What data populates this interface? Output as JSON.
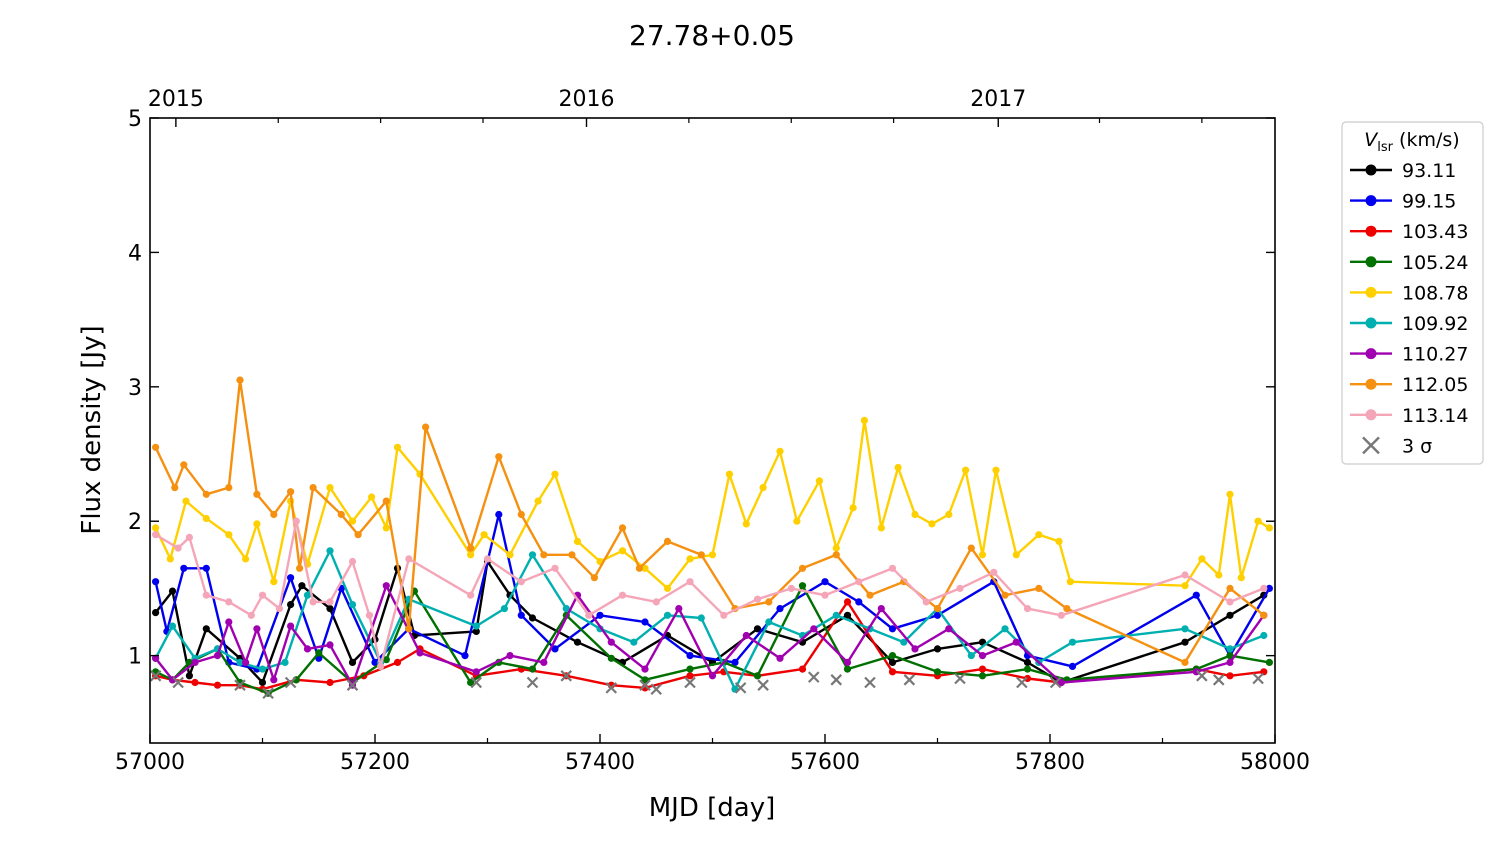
{
  "chart_data": {
    "type": "line",
    "title": "27.78+0.05",
    "xlabel": "MJD [day]",
    "ylabel": "Flux density [Jy]",
    "xlim": [
      57000,
      58000
    ],
    "ylim": [
      0.35,
      5
    ],
    "x_ticks": [
      57000,
      57200,
      57400,
      57600,
      57800,
      58000
    ],
    "y_ticks": [
      1,
      2,
      3,
      4,
      5
    ],
    "top_axis": {
      "ticks": [
        {
          "label": "2015",
          "mjd": 57023
        },
        {
          "label": "2016",
          "mjd": 57388
        },
        {
          "label": "2017",
          "mjd": 57754
        }
      ]
    },
    "grid": false,
    "legend": {
      "placement": "outside-right",
      "title_main": "V",
      "title_sub": "lsr",
      "title_unit": " (km/s)",
      "upper_limit_label": "3 σ",
      "upper_limit_color": "#777777"
    },
    "series": [
      {
        "name": "93.11",
        "color": "#000000",
        "x": [
          57005,
          57020,
          57035,
          57050,
          57080,
          57100,
          57125,
          57135,
          57160,
          57180,
          57200,
          57220,
          57235,
          57290,
          57300,
          57320,
          57340,
          57380,
          57420,
          57460,
          57500,
          57540,
          57580,
          57620,
          57660,
          57700,
          57740,
          57780,
          57810,
          57920,
          57960,
          57990
        ],
        "y": [
          1.32,
          1.48,
          0.85,
          1.2,
          0.98,
          0.8,
          1.38,
          1.52,
          1.35,
          0.95,
          1.12,
          1.65,
          1.15,
          1.18,
          1.7,
          1.45,
          1.28,
          1.1,
          0.95,
          1.15,
          0.95,
          1.2,
          1.1,
          1.3,
          0.95,
          1.05,
          1.1,
          0.95,
          0.8,
          1.1,
          1.3,
          1.45
        ]
      },
      {
        "name": "99.15",
        "color": "#0000ee",
        "x": [
          57005,
          57015,
          57030,
          57050,
          57070,
          57095,
          57125,
          57150,
          57170,
          57200,
          57230,
          57280,
          57310,
          57330,
          57360,
          57400,
          57440,
          57480,
          57520,
          57560,
          57600,
          57630,
          57660,
          57700,
          57750,
          57780,
          57820,
          57930,
          57960,
          57995
        ],
        "y": [
          1.55,
          1.18,
          1.65,
          1.65,
          0.95,
          0.9,
          1.58,
          0.98,
          1.5,
          0.95,
          1.2,
          1.0,
          2.05,
          1.3,
          1.05,
          1.3,
          1.25,
          1.0,
          0.95,
          1.35,
          1.55,
          1.4,
          1.2,
          1.3,
          1.55,
          1.0,
          0.92,
          1.45,
          1.0,
          1.5
        ]
      },
      {
        "name": "103.43",
        "color": "#ee0000",
        "x": [
          57005,
          57020,
          57040,
          57060,
          57080,
          57100,
          57130,
          57160,
          57190,
          57220,
          57240,
          57290,
          57330,
          57370,
          57410,
          57440,
          57480,
          57510,
          57540,
          57580,
          57620,
          57660,
          57700,
          57740,
          57780,
          57810,
          57930,
          57960,
          57990
        ],
        "y": [
          0.85,
          0.82,
          0.8,
          0.78,
          0.78,
          0.75,
          0.82,
          0.8,
          0.85,
          0.95,
          1.05,
          0.85,
          0.9,
          0.85,
          0.78,
          0.76,
          0.85,
          0.88,
          0.85,
          0.9,
          1.4,
          0.88,
          0.85,
          0.9,
          0.83,
          0.8,
          0.9,
          0.85,
          0.88
        ]
      },
      {
        "name": "105.24",
        "color": "#007000",
        "x": [
          57005,
          57020,
          57035,
          57060,
          57080,
          57105,
          57130,
          57150,
          57180,
          57210,
          57235,
          57285,
          57310,
          57340,
          57370,
          57410,
          57440,
          57480,
          57510,
          57540,
          57580,
          57620,
          57660,
          57700,
          57740,
          57780,
          57815,
          57930,
          57960,
          57995
        ],
        "y": [
          0.88,
          0.82,
          0.95,
          1.05,
          0.8,
          0.72,
          0.82,
          1.02,
          0.8,
          0.97,
          1.48,
          0.8,
          0.95,
          0.9,
          1.3,
          0.98,
          0.82,
          0.9,
          0.95,
          0.85,
          1.52,
          0.9,
          1.0,
          0.88,
          0.85,
          0.9,
          0.82,
          0.9,
          1.0,
          0.95
        ]
      },
      {
        "name": "108.78",
        "color": "#ffd000",
        "x": [
          57005,
          57018,
          57032,
          57050,
          57070,
          57085,
          57095,
          57110,
          57125,
          57140,
          57160,
          57180,
          57197,
          57210,
          57220,
          57240,
          57285,
          57297,
          57320,
          57345,
          57360,
          57380,
          57400,
          57420,
          57440,
          57460,
          57480,
          57500,
          57515,
          57530,
          57545,
          57560,
          57575,
          57595,
          57610,
          57625,
          57635,
          57650,
          57665,
          57680,
          57695,
          57710,
          57725,
          57740,
          57752,
          57770,
          57790,
          57808,
          57818,
          57920,
          57935,
          57950,
          57960,
          57970,
          57985,
          57995
        ],
        "y": [
          1.95,
          1.72,
          2.15,
          2.02,
          1.9,
          1.72,
          1.98,
          1.55,
          2.15,
          1.68,
          2.25,
          2.0,
          2.18,
          1.95,
          2.55,
          2.35,
          1.75,
          1.9,
          1.75,
          2.15,
          2.35,
          1.85,
          1.7,
          1.78,
          1.65,
          1.5,
          1.72,
          1.75,
          2.35,
          1.98,
          2.25,
          2.52,
          2.0,
          2.3,
          1.8,
          2.1,
          2.75,
          1.95,
          2.4,
          2.05,
          1.98,
          2.05,
          2.38,
          1.75,
          2.38,
          1.75,
          1.9,
          1.85,
          1.55,
          1.52,
          1.72,
          1.6,
          2.2,
          1.58,
          2.0,
          1.95
        ]
      },
      {
        "name": "109.92",
        "color": "#00b0b0",
        "x": [
          57005,
          57020,
          57040,
          57060,
          57080,
          57100,
          57120,
          57140,
          57160,
          57180,
          57205,
          57230,
          57290,
          57315,
          57340,
          57370,
          57400,
          57430,
          57460,
          57490,
          57520,
          57550,
          57580,
          57610,
          57640,
          57670,
          57700,
          57730,
          57760,
          57790,
          57820,
          57920,
          57960,
          57990
        ],
        "y": [
          0.98,
          1.22,
          0.98,
          1.05,
          0.95,
          0.9,
          0.95,
          1.45,
          1.78,
          1.38,
          0.95,
          1.42,
          1.22,
          1.35,
          1.75,
          1.35,
          1.2,
          1.1,
          1.3,
          1.28,
          0.75,
          1.25,
          1.15,
          1.3,
          1.2,
          1.1,
          1.35,
          1.0,
          1.2,
          0.95,
          1.1,
          1.2,
          1.05,
          1.15
        ]
      },
      {
        "name": "110.27",
        "color": "#a000b0",
        "x": [
          57005,
          57020,
          57040,
          57060,
          57070,
          57085,
          57095,
          57110,
          57125,
          57140,
          57160,
          57180,
          57210,
          57240,
          57290,
          57320,
          57350,
          57380,
          57410,
          57440,
          57470,
          57500,
          57530,
          57560,
          57590,
          57620,
          57650,
          57680,
          57710,
          57740,
          57770,
          57810,
          57930,
          57960,
          57990
        ],
        "y": [
          0.98,
          0.82,
          0.95,
          1.0,
          1.25,
          0.95,
          1.2,
          0.82,
          1.22,
          1.05,
          1.08,
          0.78,
          1.52,
          1.02,
          0.88,
          1.0,
          0.95,
          1.45,
          1.1,
          0.9,
          1.35,
          0.85,
          1.15,
          0.98,
          1.2,
          0.95,
          1.35,
          1.05,
          1.2,
          1.0,
          1.1,
          0.8,
          0.88,
          0.95,
          1.3
        ]
      },
      {
        "name": "112.05",
        "color": "#f59010",
        "x": [
          57005,
          57022,
          57030,
          57050,
          57070,
          57080,
          57095,
          57110,
          57125,
          57133,
          57145,
          57170,
          57185,
          57210,
          57230,
          57245,
          57285,
          57310,
          57330,
          57350,
          57375,
          57395,
          57420,
          57435,
          57460,
          57490,
          57520,
          57550,
          57580,
          57610,
          57640,
          57670,
          57700,
          57730,
          57760,
          57790,
          57815,
          57920,
          57960,
          57990
        ],
        "y": [
          2.55,
          2.25,
          2.42,
          2.2,
          2.25,
          3.05,
          2.2,
          2.05,
          2.22,
          1.65,
          2.25,
          2.05,
          1.9,
          2.15,
          1.2,
          2.7,
          1.8,
          2.48,
          2.05,
          1.75,
          1.75,
          1.58,
          1.95,
          1.65,
          1.85,
          1.75,
          1.35,
          1.4,
          1.65,
          1.75,
          1.45,
          1.55,
          1.35,
          1.8,
          1.45,
          1.5,
          1.35,
          0.95,
          1.5,
          1.3
        ]
      },
      {
        "name": "113.14",
        "color": "#f5a5b8",
        "x": [
          57005,
          57025,
          57035,
          57050,
          57070,
          57090,
          57100,
          57115,
          57130,
          57145,
          57160,
          57180,
          57195,
          57205,
          57230,
          57285,
          57300,
          57330,
          57360,
          57390,
          57420,
          57450,
          57480,
          57510,
          57540,
          57570,
          57600,
          57630,
          57660,
          57690,
          57720,
          57750,
          57780,
          57810,
          57920,
          57960,
          57990
        ],
        "y": [
          1.9,
          1.8,
          1.88,
          1.45,
          1.4,
          1.3,
          1.45,
          1.35,
          2.0,
          1.4,
          1.4,
          1.7,
          1.3,
          0.92,
          1.72,
          1.45,
          1.72,
          1.55,
          1.65,
          1.3,
          1.45,
          1.4,
          1.55,
          1.3,
          1.42,
          1.5,
          1.45,
          1.55,
          1.65,
          1.4,
          1.5,
          1.62,
          1.35,
          1.3,
          1.6,
          1.4,
          1.5
        ]
      }
    ],
    "upper_limits": {
      "name": "3 σ",
      "x": [
        57005,
        57025,
        57080,
        57105,
        57125,
        57180,
        57290,
        57340,
        57370,
        57410,
        57440,
        57450,
        57480,
        57525,
        57545,
        57590,
        57610,
        57640,
        57675,
        57720,
        57775,
        57805,
        57935,
        57950,
        57985
      ],
      "y": [
        0.85,
        0.8,
        0.78,
        0.72,
        0.8,
        0.78,
        0.8,
        0.8,
        0.85,
        0.76,
        0.78,
        0.75,
        0.8,
        0.76,
        0.78,
        0.84,
        0.82,
        0.8,
        0.82,
        0.83,
        0.8,
        0.8,
        0.85,
        0.82,
        0.83
      ]
    }
  }
}
